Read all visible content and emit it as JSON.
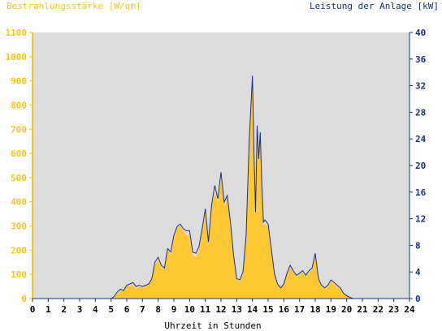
{
  "chart_data": {
    "type": "area",
    "ylabel_left": "Bestrahlungsstärke [W/qm]",
    "ylabel_right": "Leistung der Anlage [kW]",
    "xlabel": "Uhrzeit in Stunden",
    "xlim": [
      0,
      24
    ],
    "ylim_left": [
      0,
      1100
    ],
    "ylim_right": [
      0,
      40
    ],
    "x_ticks": [
      "0",
      "1",
      "2",
      "3",
      "4",
      "5",
      "6",
      "7",
      "8",
      "9",
      "10",
      "11",
      "12",
      "13",
      "14",
      "15",
      "16",
      "17",
      "18",
      "19",
      "20",
      "21",
      "22",
      "23",
      "24"
    ],
    "y_ticks_left": [
      "0",
      "100",
      "200",
      "300",
      "400",
      "500",
      "600",
      "700",
      "800",
      "900",
      "1000",
      "1100"
    ],
    "y_ticks_right": [
      "0",
      "4",
      "8",
      "12",
      "16",
      "20",
      "24",
      "28",
      "32",
      "36",
      "40"
    ],
    "grid": false,
    "colors": {
      "irradiance_fill": "#ffc832",
      "power_line": "#1c2f80",
      "plot_bg": "#dcdcdc",
      "left_axis": "#f5c518",
      "right_axis": "#1c2f80"
    },
    "series": [
      {
        "name": "Bestrahlungsstärke [W/qm]",
        "axis": "left",
        "style": "area",
        "x": [
          0,
          5,
          5.2,
          5.4,
          5.6,
          5.8,
          6,
          6.2,
          6.4,
          6.6,
          6.8,
          7,
          7.2,
          7.4,
          7.6,
          7.8,
          8,
          8.2,
          8.4,
          8.6,
          8.8,
          9,
          9.2,
          9.4,
          9.6,
          9.8,
          10,
          10.2,
          10.4,
          10.6,
          10.8,
          11,
          11.2,
          11.4,
          11.6,
          11.8,
          12,
          12.2,
          12.4,
          12.6,
          12.8,
          13,
          13.2,
          13.4,
          13.6,
          13.8,
          14,
          14.1,
          14.2,
          14.3,
          14.4,
          14.5,
          14.6,
          14.7,
          14.8,
          15,
          15.2,
          15.4,
          15.6,
          15.8,
          16,
          16.2,
          16.4,
          16.6,
          16.8,
          17,
          17.2,
          17.4,
          17.6,
          17.8,
          18,
          18.2,
          18.4,
          18.6,
          18.8,
          19,
          19.2,
          19.4,
          19.6,
          19.8,
          20,
          20.2,
          20.4,
          21,
          24
        ],
        "values": [
          0,
          0,
          5,
          20,
          35,
          30,
          55,
          50,
          60,
          40,
          50,
          45,
          55,
          60,
          80,
          140,
          160,
          130,
          120,
          200,
          180,
          250,
          290,
          300,
          280,
          260,
          260,
          180,
          170,
          200,
          280,
          360,
          220,
          380,
          440,
          400,
          500,
          380,
          420,
          300,
          170,
          80,
          70,
          100,
          250,
          650,
          900,
          600,
          350,
          700,
          560,
          650,
          450,
          300,
          310,
          300,
          200,
          100,
          60,
          40,
          60,
          100,
          130,
          110,
          90,
          100,
          110,
          90,
          110,
          120,
          180,
          80,
          50,
          40,
          50,
          70,
          60,
          50,
          40,
          20,
          10,
          5,
          0,
          0,
          0
        ]
      },
      {
        "name": "Leistung der Anlage [kW]",
        "axis": "right",
        "style": "line",
        "x": [
          0,
          5,
          5.2,
          5.4,
          5.6,
          5.8,
          6,
          6.2,
          6.4,
          6.6,
          6.8,
          7,
          7.2,
          7.4,
          7.6,
          7.8,
          8,
          8.2,
          8.4,
          8.6,
          8.8,
          9,
          9.2,
          9.4,
          9.6,
          9.8,
          10,
          10.2,
          10.4,
          10.6,
          10.8,
          11,
          11.2,
          11.4,
          11.6,
          11.8,
          12,
          12.2,
          12.4,
          12.6,
          12.8,
          13,
          13.2,
          13.4,
          13.6,
          13.8,
          14,
          14.1,
          14.2,
          14.3,
          14.4,
          14.5,
          14.6,
          14.7,
          14.8,
          15,
          15.2,
          15.4,
          15.6,
          15.8,
          16,
          16.2,
          16.4,
          16.6,
          16.8,
          17,
          17.2,
          17.4,
          17.6,
          17.8,
          18,
          18.2,
          18.4,
          18.6,
          18.8,
          19,
          19.2,
          19.4,
          19.6,
          19.8,
          20,
          20.2,
          20.4,
          21,
          24
        ],
        "values": [
          0,
          0,
          0.3,
          1.0,
          1.4,
          1.2,
          2.0,
          2.2,
          2.4,
          1.8,
          2.0,
          1.8,
          2.0,
          2.2,
          3.0,
          5.5,
          6.2,
          5.0,
          4.6,
          7.5,
          7.0,
          9.5,
          10.8,
          11.2,
          10.5,
          10.2,
          10.2,
          7.0,
          6.8,
          7.8,
          10.5,
          13.5,
          8.5,
          14.0,
          17.0,
          15.0,
          19.0,
          14.5,
          15.5,
          11.5,
          6.5,
          3.0,
          2.8,
          4.0,
          9.5,
          24.0,
          33.5,
          22.0,
          13.0,
          26.0,
          21.0,
          25.0,
          17.0,
          11.5,
          11.8,
          11.2,
          7.5,
          3.8,
          2.2,
          1.6,
          2.2,
          3.8,
          5.0,
          4.2,
          3.5,
          3.8,
          4.2,
          3.5,
          4.2,
          4.6,
          6.8,
          3.0,
          2.0,
          1.6,
          2.0,
          2.8,
          2.4,
          2.0,
          1.6,
          0.8,
          0.4,
          0.2,
          0,
          0,
          0
        ]
      }
    ]
  }
}
